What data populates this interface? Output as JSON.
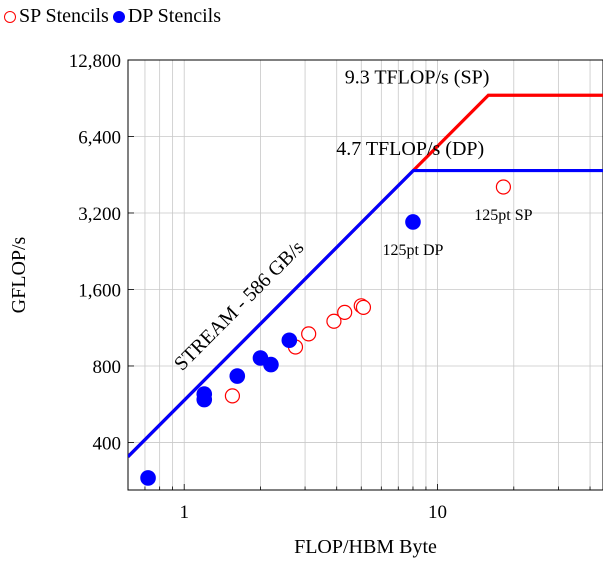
{
  "legend": {
    "sp": "SP Stencils",
    "dp": "DP Stencils"
  },
  "chart_data": {
    "type": "scatter",
    "xlabel": "FLOP/HBM Byte",
    "ylabel": "GFLOP/s",
    "x_scale": "log",
    "y_scale": "log",
    "xlim": [
      0.6,
      45
    ],
    "ylim": [
      260,
      12800
    ],
    "x_ticks": [
      {
        "value": 1,
        "label": "1"
      },
      {
        "value": 10,
        "label": "10"
      }
    ],
    "y_ticks": [
      {
        "value": 400,
        "label": "400"
      },
      {
        "value": 800,
        "label": "800"
      },
      {
        "value": 1600,
        "label": "1,600"
      },
      {
        "value": 3200,
        "label": "3,200"
      },
      {
        "value": 6400,
        "label": "6,400"
      },
      {
        "value": 12800,
        "label": "12,800"
      }
    ],
    "grid": true,
    "legend_position": "top-left-outside",
    "rooflines": [
      {
        "name": "SP",
        "color": "#ff0000",
        "bandwidth": 586,
        "peak": 9300
      },
      {
        "name": "DP",
        "color": "#0000ff",
        "bandwidth": 586,
        "peak": 4700
      }
    ],
    "roof_labels": [
      {
        "text": "9.3 TFLOP/s (SP)",
        "x": 8.3,
        "y": 9300
      },
      {
        "text": "4.7 TFLOP/s (DP)",
        "x": 7.8,
        "y": 4850
      }
    ],
    "bandwidth_label": {
      "text": "STREAM - 586 GB/s",
      "x": 0.98,
      "y": 760
    },
    "series": [
      {
        "name": "SP Stencils",
        "marker": "open-circle",
        "color": "#ff0000",
        "points": [
          {
            "x": 1.55,
            "y": 610
          },
          {
            "x": 2.75,
            "y": 950
          },
          {
            "x": 3.1,
            "y": 1070
          },
          {
            "x": 3.9,
            "y": 1200
          },
          {
            "x": 4.3,
            "y": 1300
          },
          {
            "x": 5.0,
            "y": 1380
          },
          {
            "x": 5.1,
            "y": 1360
          },
          {
            "x": 18.2,
            "y": 4050
          }
        ]
      },
      {
        "name": "DP Stencils",
        "marker": "filled-circle",
        "color": "#0000ff",
        "points": [
          {
            "x": 0.72,
            "y": 290
          },
          {
            "x": 1.2,
            "y": 590
          },
          {
            "x": 1.2,
            "y": 620
          },
          {
            "x": 1.62,
            "y": 730
          },
          {
            "x": 2.0,
            "y": 860
          },
          {
            "x": 2.2,
            "y": 810
          },
          {
            "x": 2.6,
            "y": 1010
          },
          {
            "x": 8.0,
            "y": 2950
          }
        ]
      }
    ],
    "annotations": [
      {
        "text": "125pt SP",
        "x": 18.2,
        "y": 4050
      },
      {
        "text": "125pt DP",
        "x": 8.0,
        "y": 2950
      }
    ]
  }
}
